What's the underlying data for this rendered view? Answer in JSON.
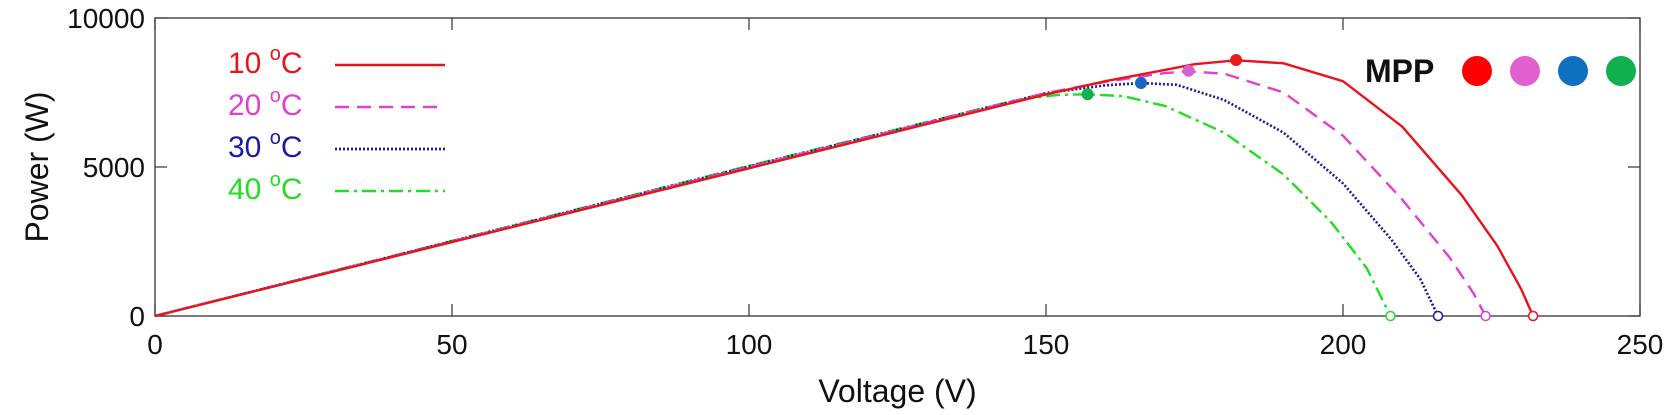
{
  "chart_data": {
    "type": "line",
    "xlabel": "Voltage (V)",
    "ylabel": "Power (W)",
    "xlim": [
      0,
      250
    ],
    "ylim": [
      0,
      10000
    ],
    "xticks": [
      0,
      50,
      100,
      150,
      200,
      250
    ],
    "yticks": [
      0,
      5000,
      10000
    ],
    "grid": false,
    "legend_position": "top-left",
    "series": [
      {
        "name": "10",
        "unit": "oC",
        "color": "#e8141c",
        "style": "solid",
        "points": [
          [
            0,
            0
          ],
          [
            50,
            2479
          ],
          [
            100,
            4958
          ],
          [
            150,
            7437
          ],
          [
            160,
            7880
          ],
          [
            170,
            8260
          ],
          [
            175,
            8450
          ],
          [
            182,
            8580
          ],
          [
            190,
            8480
          ],
          [
            200,
            7880
          ],
          [
            210,
            6350
          ],
          [
            220,
            4050
          ],
          [
            226,
            2350
          ],
          [
            230,
            900
          ],
          [
            232,
            0
          ]
        ],
        "mpp": [
          182,
          8590
        ],
        "voc": 232
      },
      {
        "name": "20",
        "unit": "oC",
        "color": "#e040d0",
        "style": "dashed",
        "points": [
          [
            0,
            0
          ],
          [
            50,
            2500
          ],
          [
            100,
            5000
          ],
          [
            150,
            7480
          ],
          [
            160,
            7860
          ],
          [
            170,
            8150
          ],
          [
            174,
            8210
          ],
          [
            180,
            8130
          ],
          [
            190,
            7500
          ],
          [
            200,
            6050
          ],
          [
            210,
            3900
          ],
          [
            218,
            1950
          ],
          [
            222,
            750
          ],
          [
            224,
            0
          ]
        ],
        "mpp": [
          174,
          8230
        ],
        "voc": 224
      },
      {
        "name": "30",
        "unit": "oC",
        "color": "#1a1aa8",
        "style": "dotted",
        "points": [
          [
            0,
            0
          ],
          [
            50,
            2510
          ],
          [
            100,
            5020
          ],
          [
            150,
            7480
          ],
          [
            160,
            7740
          ],
          [
            166,
            7820
          ],
          [
            172,
            7760
          ],
          [
            180,
            7250
          ],
          [
            190,
            6150
          ],
          [
            200,
            4450
          ],
          [
            208,
            2600
          ],
          [
            213,
            1250
          ],
          [
            216,
            0
          ]
        ],
        "mpp": [
          166,
          7820
        ],
        "voc": 216
      },
      {
        "name": "40",
        "unit": "oC",
        "color": "#22dd22",
        "style": "dashdot",
        "points": [
          [
            0,
            0
          ],
          [
            50,
            2520
          ],
          [
            100,
            5040
          ],
          [
            145,
            7250
          ],
          [
            152,
            7420
          ],
          [
            157,
            7440
          ],
          [
            163,
            7380
          ],
          [
            170,
            7050
          ],
          [
            180,
            6150
          ],
          [
            190,
            4750
          ],
          [
            198,
            3150
          ],
          [
            204,
            1600
          ],
          [
            208,
            0
          ]
        ],
        "mpp": [
          157,
          7440
        ],
        "voc": 208
      }
    ],
    "mpp_legend": {
      "label": "MPP",
      "colors": [
        "#ff0000",
        "#e060d0",
        "#1070c0",
        "#10b050"
      ]
    },
    "mpp_marker_colors": [
      "#e81c1c",
      "#d860d0",
      "#1868c0",
      "#14b050"
    ]
  }
}
